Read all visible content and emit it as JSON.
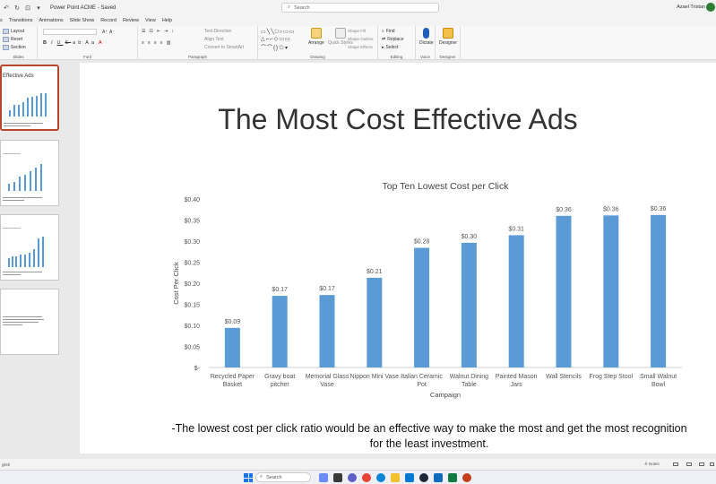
{
  "titlebar": {
    "doc_title": "Power Point ACME - Saved",
    "search_placeholder": "Search",
    "user_name": "Azael Tristan"
  },
  "menu": {
    "tabs": [
      "s",
      "Transitions",
      "Animations",
      "Slide Show",
      "Record",
      "Review",
      "View",
      "Help"
    ]
  },
  "ribbon": {
    "slides": {
      "layout": "Layout",
      "reset": "Reset",
      "section": "Section",
      "label": "Slides"
    },
    "font": {
      "label": "Font"
    },
    "paragraph": {
      "text_direction": "Text Direction",
      "align_text": "Align Text",
      "convert_smartart": "Convert to SmartArt",
      "label": "Paragraph"
    },
    "drawing": {
      "arrange": "Arrange",
      "quick_styles": "Quick Styles",
      "shape_fill": "Shape Fill",
      "shape_outline": "Shape Outline",
      "shape_effects": "Shape Effects",
      "label": "Drawing"
    },
    "editing": {
      "find": "Find",
      "replace": "Replace",
      "select": "Select",
      "label": "Editing"
    },
    "voice": {
      "dictate": "Dictate",
      "label": "Voice"
    },
    "designer": {
      "designer": "Designer",
      "label": "Designer"
    }
  },
  "thumbs": {
    "t1_title": "Effective Ads"
  },
  "slide": {
    "title": "The Most Cost Effective Ads",
    "caption": "-The lowest cost per click ratio would be an effective way to make the most and get the most recognition for the least investment."
  },
  "status": {
    "left": "glish",
    "notes": "Notes"
  },
  "taskbar": {
    "search": "Search"
  },
  "chart_data": {
    "type": "bar",
    "title": "Top Ten Lowest Cost per Click",
    "xlabel": "Campaign",
    "ylabel": "Cost Per Click",
    "ylim": [
      0,
      0.4
    ],
    "yticks": [
      "$-",
      "$0.05",
      "$0.10",
      "$0.15",
      "$0.20",
      "$0.25",
      "$0.30",
      "$0.35",
      "$0.40"
    ],
    "categories": [
      [
        "Recycled Paper",
        "Basket"
      ],
      [
        "Gravy boat",
        "pitcher"
      ],
      [
        "Memorial Glass",
        "Vase"
      ],
      [
        "Nippon Mini Vase"
      ],
      [
        "Italian Ceramic",
        "Pot"
      ],
      [
        "Walnut Dining",
        "Table"
      ],
      [
        "Painted Mason",
        "Jars"
      ],
      [
        "Wall Stencils"
      ],
      [
        "Frog Step Stool"
      ],
      [
        "Small Walnut",
        "Bowl"
      ]
    ],
    "values": [
      0.094,
      0.17,
      0.172,
      0.213,
      0.284,
      0.296,
      0.314,
      0.36,
      0.361,
      0.362
    ],
    "data_labels": [
      "$0.09",
      "$0.17",
      "$0.17",
      "$0.21",
      "$0.28",
      "$0.30",
      "$0.31",
      "$0.36",
      "$0.36",
      "$0.36"
    ],
    "bar_color": "#5b9bd5",
    "grid": false,
    "legend": "none"
  }
}
